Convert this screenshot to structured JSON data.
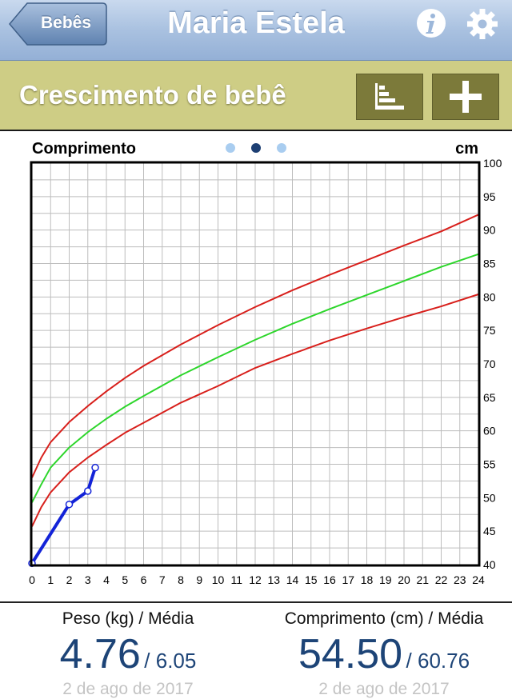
{
  "navbar": {
    "back_label": "Bebês",
    "title": "Maria Estela",
    "info_icon": "info-icon",
    "settings_icon": "gear-icon"
  },
  "subbar": {
    "title": "Crescimento de bebê",
    "list_icon": "bar-list-icon",
    "add_icon": "plus-icon"
  },
  "chart_data": {
    "type": "line",
    "title": "Comprimento",
    "ylabel": "cm",
    "xlim": [
      0,
      24
    ],
    "ylim": [
      40,
      100
    ],
    "x_ticks": [
      0,
      1,
      2,
      3,
      4,
      5,
      6,
      7,
      8,
      9,
      10,
      11,
      12,
      13,
      14,
      15,
      16,
      17,
      18,
      19,
      20,
      21,
      22,
      23,
      24
    ],
    "y_ticks": [
      40,
      45,
      50,
      55,
      60,
      65,
      70,
      75,
      80,
      85,
      90,
      95,
      100
    ],
    "grid": true,
    "page_indicator": {
      "count": 3,
      "active": 1
    },
    "series": [
      {
        "color": "#d8201c",
        "x": [
          0,
          0.5,
          1,
          2,
          3,
          4,
          5,
          6,
          8,
          10,
          12,
          14,
          16,
          18,
          20,
          22,
          24
        ],
        "values": [
          53,
          56,
          58.3,
          61.3,
          63.7,
          65.9,
          67.9,
          69.7,
          72.9,
          75.8,
          78.5,
          81,
          83.3,
          85.5,
          87.7,
          89.8,
          92.3
        ]
      },
      {
        "color": "#2ed62c",
        "x": [
          0,
          0.5,
          1,
          2,
          3,
          4,
          5,
          6,
          8,
          10,
          12,
          14,
          16,
          18,
          20,
          22,
          24
        ],
        "values": [
          49.3,
          52,
          54.5,
          57.5,
          59.8,
          61.8,
          63.6,
          65.2,
          68.3,
          71,
          73.6,
          76,
          78.2,
          80.3,
          82.4,
          84.5,
          86.4
        ]
      },
      {
        "color": "#d8201c",
        "x": [
          0,
          0.5,
          1,
          2,
          3,
          4,
          5,
          6,
          8,
          10,
          12,
          14,
          16,
          18,
          20,
          22,
          24
        ],
        "values": [
          45.7,
          48.6,
          50.8,
          53.8,
          56,
          57.9,
          59.7,
          61.2,
          64.2,
          66.7,
          69.4,
          71.5,
          73.5,
          75.3,
          77,
          78.6,
          80.4
        ]
      },
      {
        "color": "#1323d8",
        "x": [
          0,
          2,
          3,
          3.4
        ],
        "values": [
          40.2,
          49,
          51,
          54.5
        ]
      }
    ]
  },
  "stats": {
    "weight": {
      "label": "Peso (kg) / Média",
      "value": "4.76",
      "slash": "/ 6.05",
      "date": "2 de ago de 2017"
    },
    "length": {
      "label": "Comprimento (cm) / Média",
      "value": "54.50",
      "slash": "/ 60.76",
      "date": "2 de ago de 2017"
    }
  }
}
